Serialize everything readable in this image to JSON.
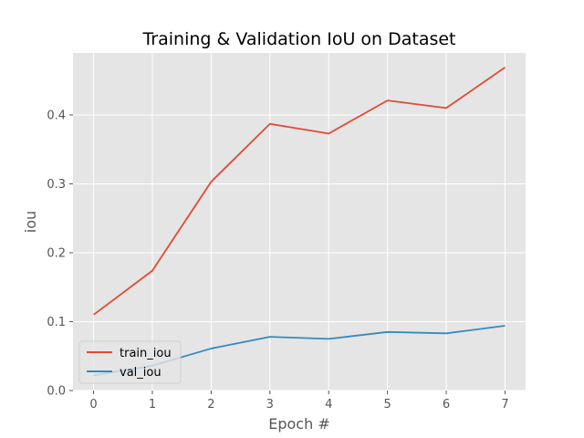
{
  "chart_data": {
    "type": "line",
    "title": "Training & Validation IoU on Dataset",
    "xlabel": "Epoch #",
    "ylabel": "iou",
    "x": [
      0,
      1,
      2,
      3,
      4,
      5,
      6,
      7
    ],
    "xlim": [
      -0.35,
      7.35
    ],
    "ylim": [
      0.0,
      0.49
    ],
    "xticks": [
      "0",
      "1",
      "2",
      "3",
      "4",
      "5",
      "6",
      "7"
    ],
    "yticks": [
      {
        "value": 0.0,
        "label": "0.0"
      },
      {
        "value": 0.1,
        "label": "0.1"
      },
      {
        "value": 0.2,
        "label": "0.2"
      },
      {
        "value": 0.3,
        "label": "0.3"
      },
      {
        "value": 0.4,
        "label": "0.4"
      }
    ],
    "grid": true,
    "legend_position": "lower-left",
    "series": [
      {
        "name": "train_iou",
        "color": "#e24a33",
        "values": [
          0.11,
          0.174,
          0.303,
          0.387,
          0.373,
          0.421,
          0.41,
          0.469
        ]
      },
      {
        "name": "val_iou",
        "color": "#348abd",
        "values": [
          0.022,
          0.036,
          0.061,
          0.078,
          0.075,
          0.085,
          0.083,
          0.094
        ]
      }
    ]
  },
  "colors": {
    "plot_background": "#e5e5e5",
    "grid": "#ffffff",
    "text": "#555555"
  }
}
